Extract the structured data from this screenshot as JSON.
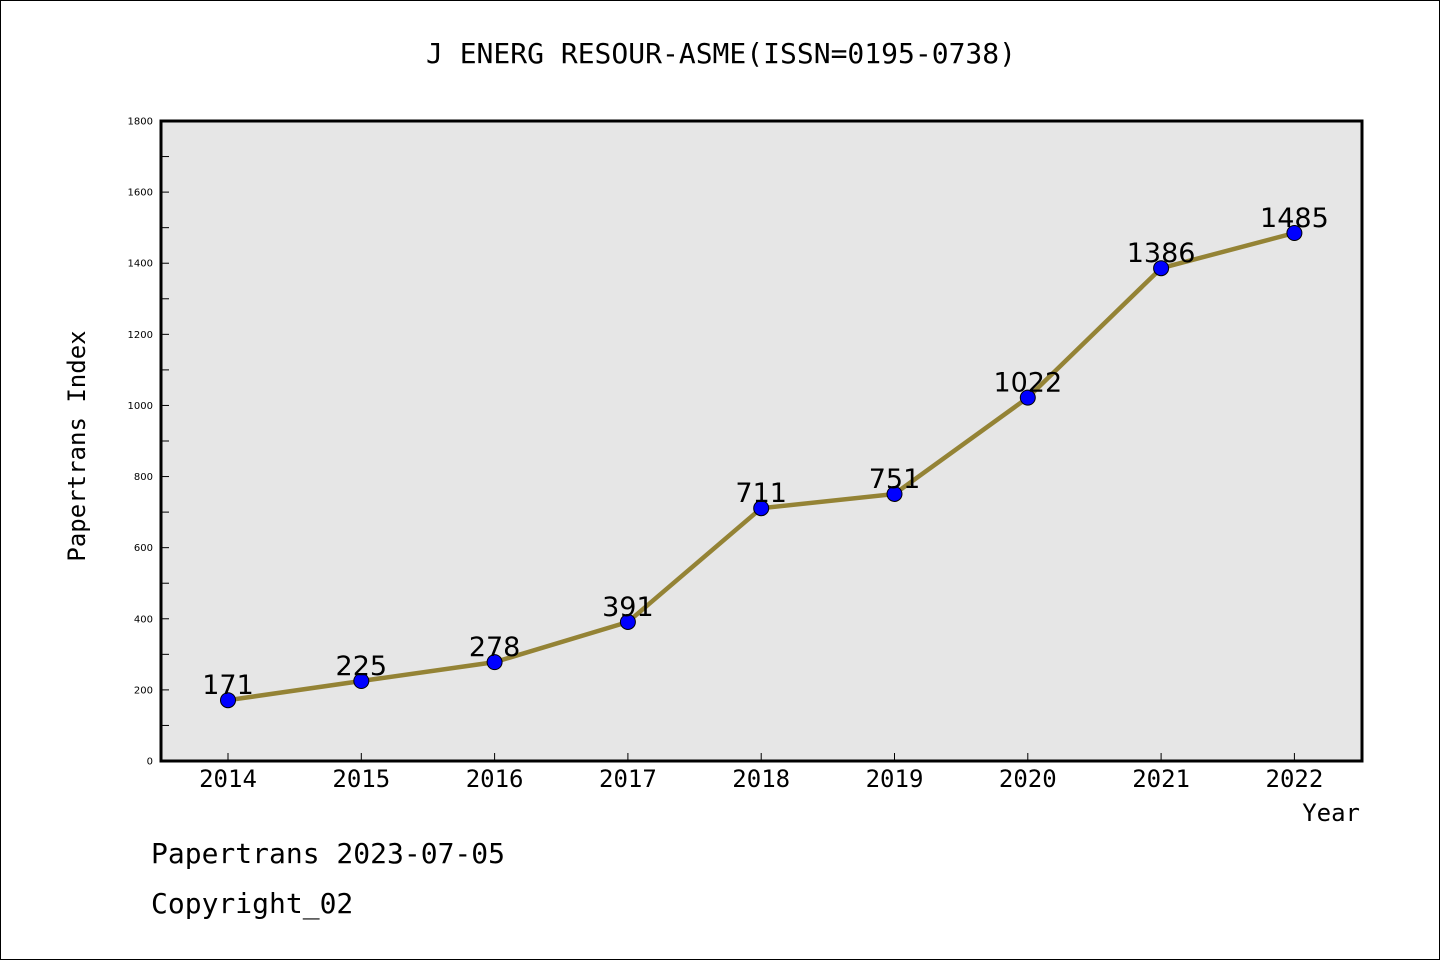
{
  "header": {
    "title": "J ENERG RESOUR-ASME(ISSN=0195-0738)"
  },
  "footer": {
    "line1": "Papertrans 2023-07-05",
    "line2": "Copyright_02"
  },
  "colors": {
    "plot_background": "#e6e6e6",
    "line": "#948335",
    "marker": "#0000ff",
    "axis": "#000000"
  },
  "chart_data": {
    "type": "line",
    "title": "J ENERG RESOUR-ASME(ISSN=0195-0738)",
    "xlabel": "Year",
    "ylabel": "Papertrans Index",
    "categories": [
      "2014",
      "2015",
      "2016",
      "2017",
      "2018",
      "2019",
      "2020",
      "2021",
      "2022"
    ],
    "series": [
      {
        "values": [
          171,
          225,
          278,
          391,
          711,
          751,
          1022,
          1386,
          1485
        ]
      }
    ],
    "data_labels": [
      "171",
      "225",
      "278",
      "391",
      "711",
      "751",
      "1022",
      "1386",
      "1485"
    ],
    "yticks": [
      0,
      200,
      400,
      600,
      800,
      1000,
      1200,
      1400,
      1600,
      1800
    ],
    "ylim": [
      0,
      1800
    ],
    "grid": false,
    "legend": "none"
  }
}
